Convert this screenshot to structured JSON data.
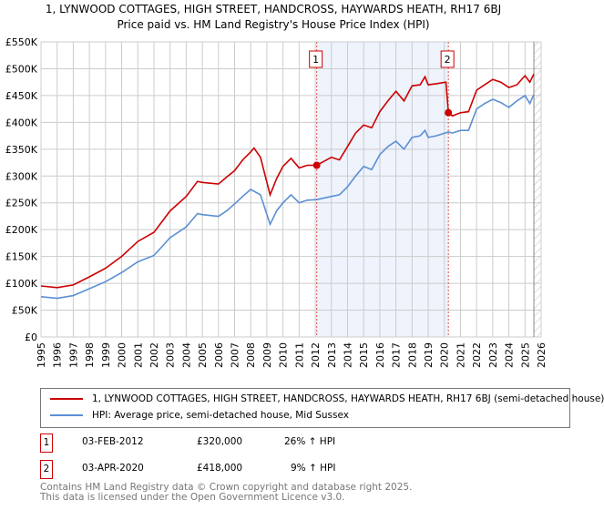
{
  "chart_data": {
    "type": "line",
    "title": "1, LYNWOOD COTTAGES, HIGH STREET, HANDCROSS, HAYWARDS HEATH, RH17 6BJ",
    "subtitle": "Price paid vs. HM Land Registry's House Price Index (HPI)",
    "xlim": [
      1995,
      2026
    ],
    "ylim": [
      0,
      550000
    ],
    "x_ticks": [
      "1995",
      "1996",
      "1997",
      "1998",
      "1999",
      "2000",
      "2001",
      "2002",
      "2003",
      "2004",
      "2005",
      "2006",
      "2007",
      "2008",
      "2009",
      "2010",
      "2011",
      "2012",
      "2013",
      "2014",
      "2015",
      "2016",
      "2017",
      "2018",
      "2019",
      "2020",
      "2021",
      "2022",
      "2023",
      "2024",
      "2025",
      "2026"
    ],
    "y_ticks": [
      {
        "v": 0,
        "l": "£0"
      },
      {
        "v": 50000,
        "l": "£50K"
      },
      {
        "v": 100000,
        "l": "£100K"
      },
      {
        "v": 150000,
        "l": "£150K"
      },
      {
        "v": 200000,
        "l": "£200K"
      },
      {
        "v": 250000,
        "l": "£250K"
      },
      {
        "v": 300000,
        "l": "£300K"
      },
      {
        "v": 350000,
        "l": "£350K"
      },
      {
        "v": 400000,
        "l": "£400K"
      },
      {
        "v": 450000,
        "l": "£450K"
      },
      {
        "v": 500000,
        "l": "£500K"
      },
      {
        "v": 550000,
        "l": "£550K"
      }
    ],
    "grid": true,
    "shaded_range": [
      2012.09,
      2020.25
    ],
    "forecast_hatch_from": 2025.55,
    "series": [
      {
        "name": "1, LYNWOOD COTTAGES, HIGH STREET, HANDCROSS, HAYWARDS HEATH, RH17 6BJ (semi-detached house)",
        "color": "#cc0000",
        "x": [
          1995,
          1996,
          1997,
          1998,
          1999,
          2000,
          2001,
          2002,
          2003,
          2004,
          2004.7,
          2005,
          2006,
          2006.5,
          2007,
          2007.5,
          2008,
          2008.2,
          2008.6,
          2009.2,
          2009.6,
          2010,
          2010.5,
          2011,
          2011.5,
          2012.09,
          2013,
          2013.5,
          2014,
          2014.5,
          2015,
          2015.5,
          2016,
          2016.5,
          2017,
          2017.5,
          2018,
          2018.5,
          2018.8,
          2019,
          2019.5,
          2020.1,
          2020.25,
          2020.5,
          2021,
          2021.5,
          2022,
          2022.5,
          2023,
          2023.5,
          2024,
          2024.5,
          2025,
          2025.3,
          2025.55
        ],
        "y": [
          95,
          92,
          97,
          112,
          128,
          150,
          178,
          195,
          235,
          262,
          290,
          288,
          285,
          298,
          310,
          330,
          345,
          352,
          335,
          265,
          295,
          318,
          333,
          315,
          320,
          320,
          335,
          330,
          355,
          380,
          395,
          390,
          420,
          440,
          458,
          440,
          468,
          470,
          485,
          470,
          472,
          475,
          418,
          412,
          418,
          420,
          460,
          470,
          480,
          475,
          465,
          470,
          487,
          475,
          490
        ]
      },
      {
        "name": "HPI: Average price, semi-detached house, Mid Sussex",
        "color": "#5b8fd4",
        "x": [
          1995,
          1996,
          1997,
          1998,
          1999,
          2000,
          2001,
          2002,
          2003,
          2004,
          2004.7,
          2005,
          2006,
          2006.5,
          2007,
          2007.5,
          2008,
          2008.6,
          2009.2,
          2009.6,
          2010,
          2010.5,
          2011,
          2011.5,
          2012.09,
          2013,
          2013.5,
          2014,
          2014.5,
          2015,
          2015.5,
          2016,
          2016.5,
          2017,
          2017.5,
          2018,
          2018.5,
          2018.8,
          2019,
          2019.5,
          2020.25,
          2020.5,
          2021,
          2021.5,
          2022,
          2022.5,
          2023,
          2023.5,
          2024,
          2024.5,
          2025,
          2025.3,
          2025.55
        ],
        "y": [
          75,
          72,
          77,
          90,
          103,
          120,
          140,
          152,
          185,
          205,
          230,
          228,
          225,
          235,
          248,
          262,
          275,
          265,
          210,
          235,
          250,
          265,
          250,
          255,
          256,
          262,
          265,
          280,
          300,
          318,
          312,
          340,
          355,
          365,
          350,
          372,
          375,
          385,
          372,
          375,
          382,
          380,
          385,
          385,
          425,
          435,
          443,
          437,
          428,
          440,
          450,
          435,
          452
        ]
      }
    ],
    "sales": [
      {
        "label": "1",
        "x": 2012.09,
        "y": 320000
      },
      {
        "label": "2",
        "x": 2020.25,
        "y": 418000
      }
    ]
  },
  "legend": {
    "property": "1, LYNWOOD COTTAGES, HIGH STREET, HANDCROSS, HAYWARDS HEATH, RH17 6BJ (semi-detached house)",
    "hpi": "HPI: Average price, semi-detached house, Mid Sussex"
  },
  "transactions": [
    {
      "label": "1",
      "date": "03-FEB-2012",
      "price": "£320,000",
      "hpi": "26% ↑ HPI"
    },
    {
      "label": "2",
      "date": "03-APR-2020",
      "price": "£418,000",
      "hpi": "9% ↑ HPI"
    }
  ],
  "footer": {
    "line1": "Contains HM Land Registry data © Crown copyright and database right 2025.",
    "line2": "This data is licensed under the Open Government Licence v3.0."
  }
}
